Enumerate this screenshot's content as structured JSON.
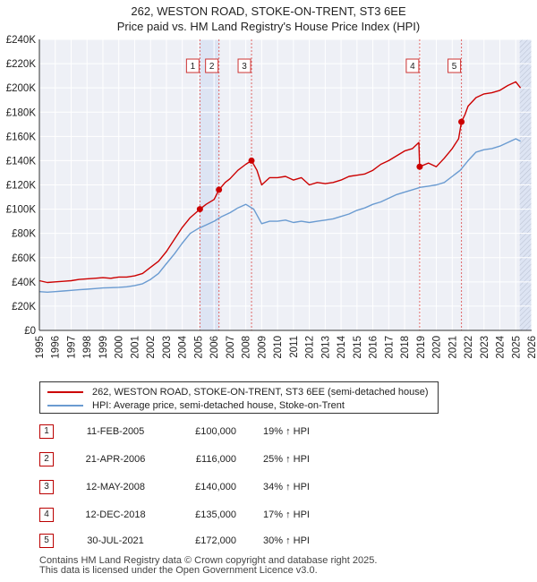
{
  "chart_data": {
    "type": "line",
    "title": "262, WESTON ROAD, STOKE-ON-TRENT, ST3 6EE",
    "subtitle": "Price paid vs. HM Land Registry's House Price Index (HPI)",
    "xlabel": "",
    "ylabel": "",
    "xlim": [
      1995,
      2026
    ],
    "ylim": [
      0,
      240000
    ],
    "x_ticks": [
      "1995",
      "1996",
      "1997",
      "1998",
      "1999",
      "2000",
      "2001",
      "2002",
      "2003",
      "2004",
      "2005",
      "2006",
      "2007",
      "2008",
      "2009",
      "2010",
      "2011",
      "2012",
      "2013",
      "2014",
      "2015",
      "2016",
      "2017",
      "2018",
      "2019",
      "2020",
      "2021",
      "2022",
      "2023",
      "2024",
      "2025",
      "2026"
    ],
    "y_ticks": [
      {
        "value": 0,
        "label": "£0"
      },
      {
        "value": 20000,
        "label": "£20K"
      },
      {
        "value": 40000,
        "label": "£40K"
      },
      {
        "value": 60000,
        "label": "£60K"
      },
      {
        "value": 80000,
        "label": "£80K"
      },
      {
        "value": 100000,
        "label": "£100K"
      },
      {
        "value": 120000,
        "label": "£120K"
      },
      {
        "value": 140000,
        "label": "£140K"
      },
      {
        "value": 160000,
        "label": "£160K"
      },
      {
        "value": 180000,
        "label": "£180K"
      },
      {
        "value": 200000,
        "label": "£200K"
      },
      {
        "value": 220000,
        "label": "£220K"
      },
      {
        "value": 240000,
        "label": "£240K"
      }
    ],
    "grid": true,
    "shaded_periods": [
      [
        2005.11,
        2006.31
      ],
      [
        2025.25,
        2026.0
      ]
    ],
    "series": [
      {
        "name": "262, WESTON ROAD, STOKE-ON-TRENT, ST3 6EE (semi-detached house)",
        "color": "#cc0000",
        "x": [
          1995.0,
          1995.5,
          1996.0,
          1996.5,
          1997.0,
          1997.5,
          1998.0,
          1998.5,
          1999.0,
          1999.5,
          2000.0,
          2000.5,
          2001.0,
          2001.5,
          2002.0,
          2002.5,
          2003.0,
          2003.5,
          2004.0,
          2004.5,
          2005.11,
          2005.5,
          2006.0,
          2006.31,
          2006.7,
          2007.0,
          2007.5,
          2008.0,
          2008.36,
          2008.7,
          2009.0,
          2009.5,
          2010.0,
          2010.5,
          2011.0,
          2011.5,
          2012.0,
          2012.5,
          2013.0,
          2013.5,
          2014.0,
          2014.5,
          2015.0,
          2015.5,
          2016.0,
          2016.5,
          2017.0,
          2017.5,
          2018.0,
          2018.5,
          2018.9,
          2018.95,
          2019.5,
          2020.0,
          2020.5,
          2021.0,
          2021.4,
          2021.58,
          2021.8,
          2022.0,
          2022.5,
          2023.0,
          2023.5,
          2024.0,
          2024.5,
          2025.0,
          2025.3
        ],
        "y": [
          41000,
          39500,
          40000,
          40500,
          41000,
          42000,
          42500,
          43000,
          43500,
          43000,
          44000,
          44000,
          45000,
          47000,
          52000,
          57000,
          65000,
          75000,
          85000,
          93000,
          100000,
          104000,
          108000,
          116000,
          122000,
          125000,
          132000,
          137000,
          140000,
          132000,
          120000,
          126000,
          126000,
          127000,
          124000,
          126000,
          120000,
          122000,
          121000,
          122000,
          124000,
          127000,
          128000,
          129000,
          132000,
          137000,
          140000,
          144000,
          148000,
          150000,
          155000,
          135000,
          138000,
          135000,
          142000,
          150000,
          158000,
          172000,
          178000,
          185000,
          192000,
          195000,
          196000,
          198000,
          202000,
          205000,
          200000
        ]
      },
      {
        "name": "HPI: Average price, semi-detached house, Stoke-on-Trent",
        "color": "#6a9bd1",
        "x": [
          1995.0,
          1995.5,
          1996.0,
          1996.5,
          1997.0,
          1997.5,
          1998.0,
          1998.5,
          1999.0,
          1999.5,
          2000.0,
          2000.5,
          2001.0,
          2001.5,
          2002.0,
          2002.5,
          2003.0,
          2003.5,
          2004.0,
          2004.5,
          2005.0,
          2005.5,
          2006.0,
          2006.5,
          2007.0,
          2007.5,
          2008.0,
          2008.5,
          2009.0,
          2009.5,
          2010.0,
          2010.5,
          2011.0,
          2011.5,
          2012.0,
          2012.5,
          2013.0,
          2013.5,
          2014.0,
          2014.5,
          2015.0,
          2015.5,
          2016.0,
          2016.5,
          2017.0,
          2017.5,
          2018.0,
          2018.5,
          2019.0,
          2019.5,
          2020.0,
          2020.5,
          2021.0,
          2021.5,
          2022.0,
          2022.5,
          2023.0,
          2023.5,
          2024.0,
          2024.5,
          2025.0,
          2025.3
        ],
        "y": [
          32000,
          31500,
          32000,
          32500,
          33000,
          33500,
          34000,
          34500,
          35000,
          35200,
          35500,
          36000,
          37000,
          38500,
          42000,
          47000,
          55000,
          63000,
          72000,
          80000,
          84000,
          87000,
          90000,
          94000,
          97000,
          101000,
          104000,
          100000,
          88000,
          90000,
          90000,
          91000,
          89000,
          90000,
          89000,
          90000,
          91000,
          92000,
          94000,
          96000,
          99000,
          101000,
          104000,
          106000,
          109000,
          112000,
          114000,
          116000,
          118000,
          119000,
          120000,
          122000,
          127000,
          132000,
          140000,
          147000,
          149000,
          150000,
          152000,
          155000,
          158000,
          156000
        ]
      }
    ],
    "sale_markers": [
      {
        "id": "1",
        "x": 2005.11,
        "y": 100000
      },
      {
        "id": "2",
        "x": 2006.31,
        "y": 116000
      },
      {
        "id": "3",
        "x": 2008.36,
        "y": 140000
      },
      {
        "id": "4",
        "x": 2018.95,
        "y": 135000
      },
      {
        "id": "5",
        "x": 2021.58,
        "y": 172000
      }
    ]
  },
  "legend": {
    "property_label": "262, WESTON ROAD, STOKE-ON-TRENT, ST3 6EE (semi-detached house)",
    "hpi_label": "HPI: Average price, semi-detached house, Stoke-on-Trent",
    "property_color": "#cc0000",
    "hpi_color": "#6a9bd1"
  },
  "sales": [
    {
      "id": "1",
      "date": "11-FEB-2005",
      "price": "£100,000",
      "hpi": "19% ↑ HPI"
    },
    {
      "id": "2",
      "date": "21-APR-2006",
      "price": "£116,000",
      "hpi": "25% ↑ HPI"
    },
    {
      "id": "3",
      "date": "12-MAY-2008",
      "price": "£140,000",
      "hpi": "34% ↑ HPI"
    },
    {
      "id": "4",
      "date": "12-DEC-2018",
      "price": "£135,000",
      "hpi": "17% ↑ HPI"
    },
    {
      "id": "5",
      "date": "30-JUL-2021",
      "price": "£172,000",
      "hpi": "30% ↑ HPI"
    }
  ],
  "footer": {
    "line1": "Contains HM Land Registry data © Crown copyright and database right 2025.",
    "line2": "This data is licensed under the Open Government Licence v3.0."
  }
}
